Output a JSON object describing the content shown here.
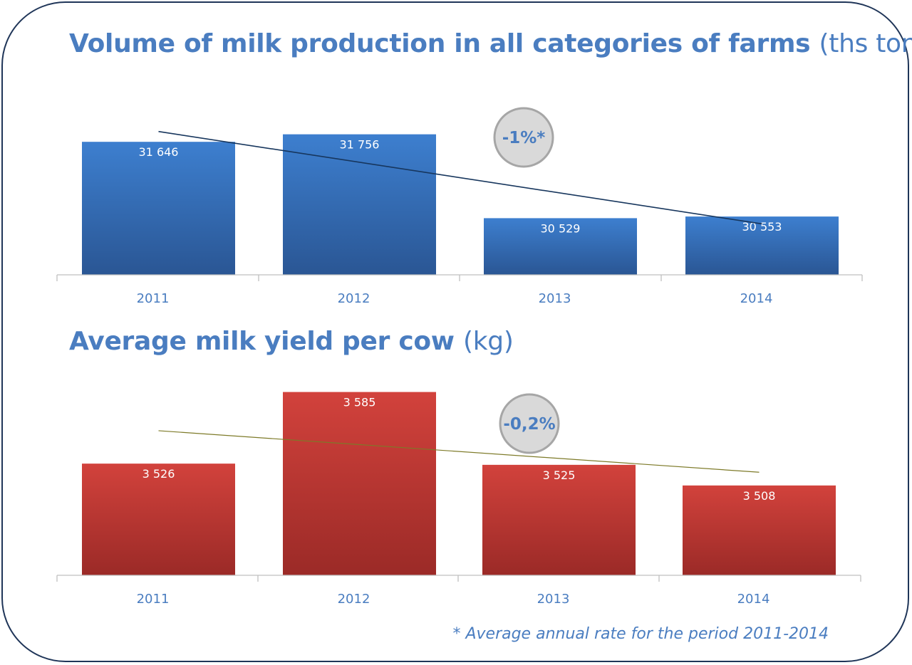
{
  "charts": [
    {
      "title": "Volume of milk production in all categories of farms",
      "unit": "(ths tons)",
      "badge": "-1%*"
    },
    {
      "title": "Average milk yield per cow",
      "unit": "(kg)",
      "badge": "-0,2%"
    }
  ],
  "footnote": "* Average annual rate for the period 2011-2014",
  "colors": {
    "title": "#4a7dc0",
    "frame": "#1f3558",
    "blue_bar_top": "#3d7fcf",
    "blue_bar_bottom": "#2a5694",
    "red_bar_top": "#d2423c",
    "red_bar_bottom": "#9b2a27",
    "trend_1": "#17365d",
    "trend_2": "#7d7a28",
    "badge_fill": "#d9d9d9",
    "badge_border": "#a6a6a6"
  },
  "chart_data": [
    {
      "type": "bar",
      "title": "Volume of milk production in all categories of farms (ths tons)",
      "categories": [
        "2011",
        "2012",
        "2013",
        "2014"
      ],
      "values": [
        31646,
        31756,
        30529,
        30553
      ],
      "labels": [
        "31 646",
        "31 756",
        "30 529",
        "30 553"
      ],
      "ylim": [
        29700,
        31950
      ],
      "trendline": "linear",
      "annotation": "-1%*",
      "grid": false,
      "legend": "none"
    },
    {
      "type": "bar",
      "title": "Average milk yield per cow (kg)",
      "categories": [
        "2011",
        "2012",
        "2013",
        "2014"
      ],
      "values": [
        3526,
        3585,
        3525,
        3508
      ],
      "labels": [
        "3 526",
        "3 585",
        "3 525",
        "3 508"
      ],
      "ylim": [
        3434,
        3600
      ],
      "trendline": "linear",
      "annotation": "-0,2%",
      "grid": false,
      "legend": "none"
    }
  ]
}
